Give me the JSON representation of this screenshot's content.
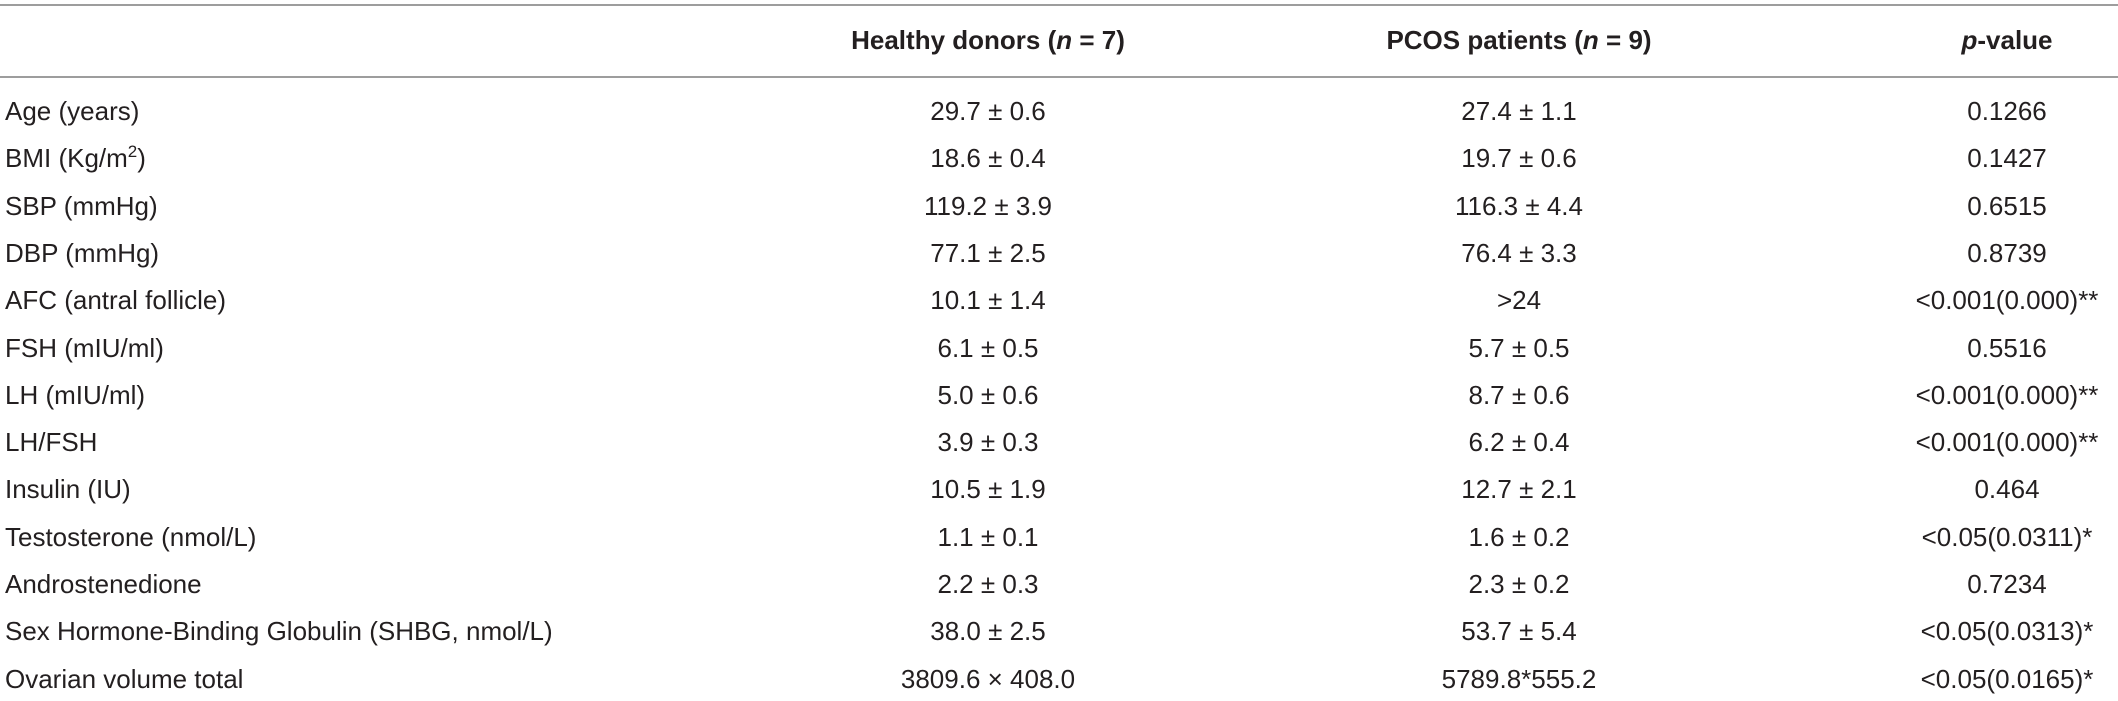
{
  "table": {
    "header": [
      {
        "text": "Healthy donors (",
        "italic": "n",
        "tail": " = 7)"
      },
      {
        "text": "PCOS patients (",
        "italic": "n",
        "tail": " = 9)"
      },
      {
        "italic": "p",
        "tail": "-value"
      }
    ],
    "rows": [
      [
        "Age (years)",
        "29.7 ± 0.6",
        "27.4 ± 1.1",
        "0.1266"
      ],
      [
        {
          "text": "BMI (Kg/m",
          "sup": "2",
          "tail": ")"
        },
        "18.6 ± 0.4",
        "19.7 ± 0.6",
        "0.1427"
      ],
      [
        "SBP (mmHg)",
        "119.2 ± 3.9",
        "116.3 ± 4.4",
        "0.6515"
      ],
      [
        "DBP (mmHg)",
        "77.1 ± 2.5",
        "76.4 ± 3.3",
        "0.8739"
      ],
      [
        "AFC (antral follicle)",
        "10.1 ± 1.4",
        ">24",
        "<0.001(0.000)**"
      ],
      [
        "FSH (mIU/ml)",
        "6.1 ± 0.5",
        "5.7 ± 0.5",
        "0.5516"
      ],
      [
        "LH (mIU/ml)",
        "5.0 ± 0.6",
        "8.7 ± 0.6",
        "<0.001(0.000)**"
      ],
      [
        "LH/FSH",
        "3.9 ± 0.3",
        "6.2 ± 0.4",
        "<0.001(0.000)**"
      ],
      [
        "Insulin (IU)",
        "10.5 ± 1.9",
        "12.7 ± 2.1",
        "0.464"
      ],
      [
        "Testosterone (nmol/L)",
        "1.1 ± 0.1",
        "1.6 ± 0.2",
        "<0.05(0.0311)*"
      ],
      [
        "Androstenedione",
        "2.2 ± 0.3",
        "2.3 ± 0.2",
        "0.7234"
      ],
      [
        "Sex Hormone-Binding Globulin (SHBG, nmol/L)",
        "38.0 ± 2.5",
        "53.7 ± 5.4",
        "<0.05(0.0313)*"
      ],
      [
        "Ovarian volume total",
        "3809.6 × 408.0",
        "5789.8*555.2",
        "<0.05(0.0165)*"
      ]
    ]
  }
}
